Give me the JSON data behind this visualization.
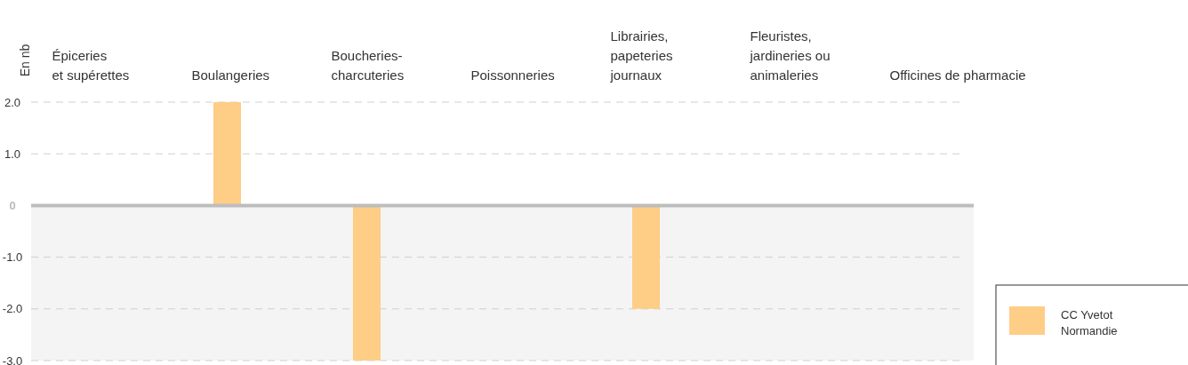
{
  "chart_data": {
    "type": "bar",
    "ylabel": "En nb",
    "categories": [
      "Épiceries\net supérettes",
      "Boulangeries",
      "Boucheries-\ncharcuteries",
      "Poissonneries",
      "Librairies,\npapeteries\njournaux",
      "Fleuristes,\njardineries ou\nanimaleries",
      "Officines de pharmacie"
    ],
    "series": [
      {
        "name": "CC Yvetot Normandie",
        "color": "#fecd86",
        "values": [
          0,
          2,
          -3,
          0,
          -2,
          0,
          0
        ]
      }
    ],
    "ylim": [
      -3,
      2
    ],
    "yticks": [
      {
        "value": 2,
        "label": "2.0"
      },
      {
        "value": 1,
        "label": "1.0"
      },
      {
        "value": 0,
        "label": "0"
      },
      {
        "value": -1,
        "label": "-1.0"
      },
      {
        "value": -2,
        "label": "-2.0"
      },
      {
        "value": -3,
        "label": "-3.0"
      }
    ],
    "bands": [
      {
        "axis": "y",
        "from": -3,
        "to": 0,
        "color": "#f4f4f4"
      }
    ],
    "grid": "y",
    "legend": "bottom right"
  }
}
